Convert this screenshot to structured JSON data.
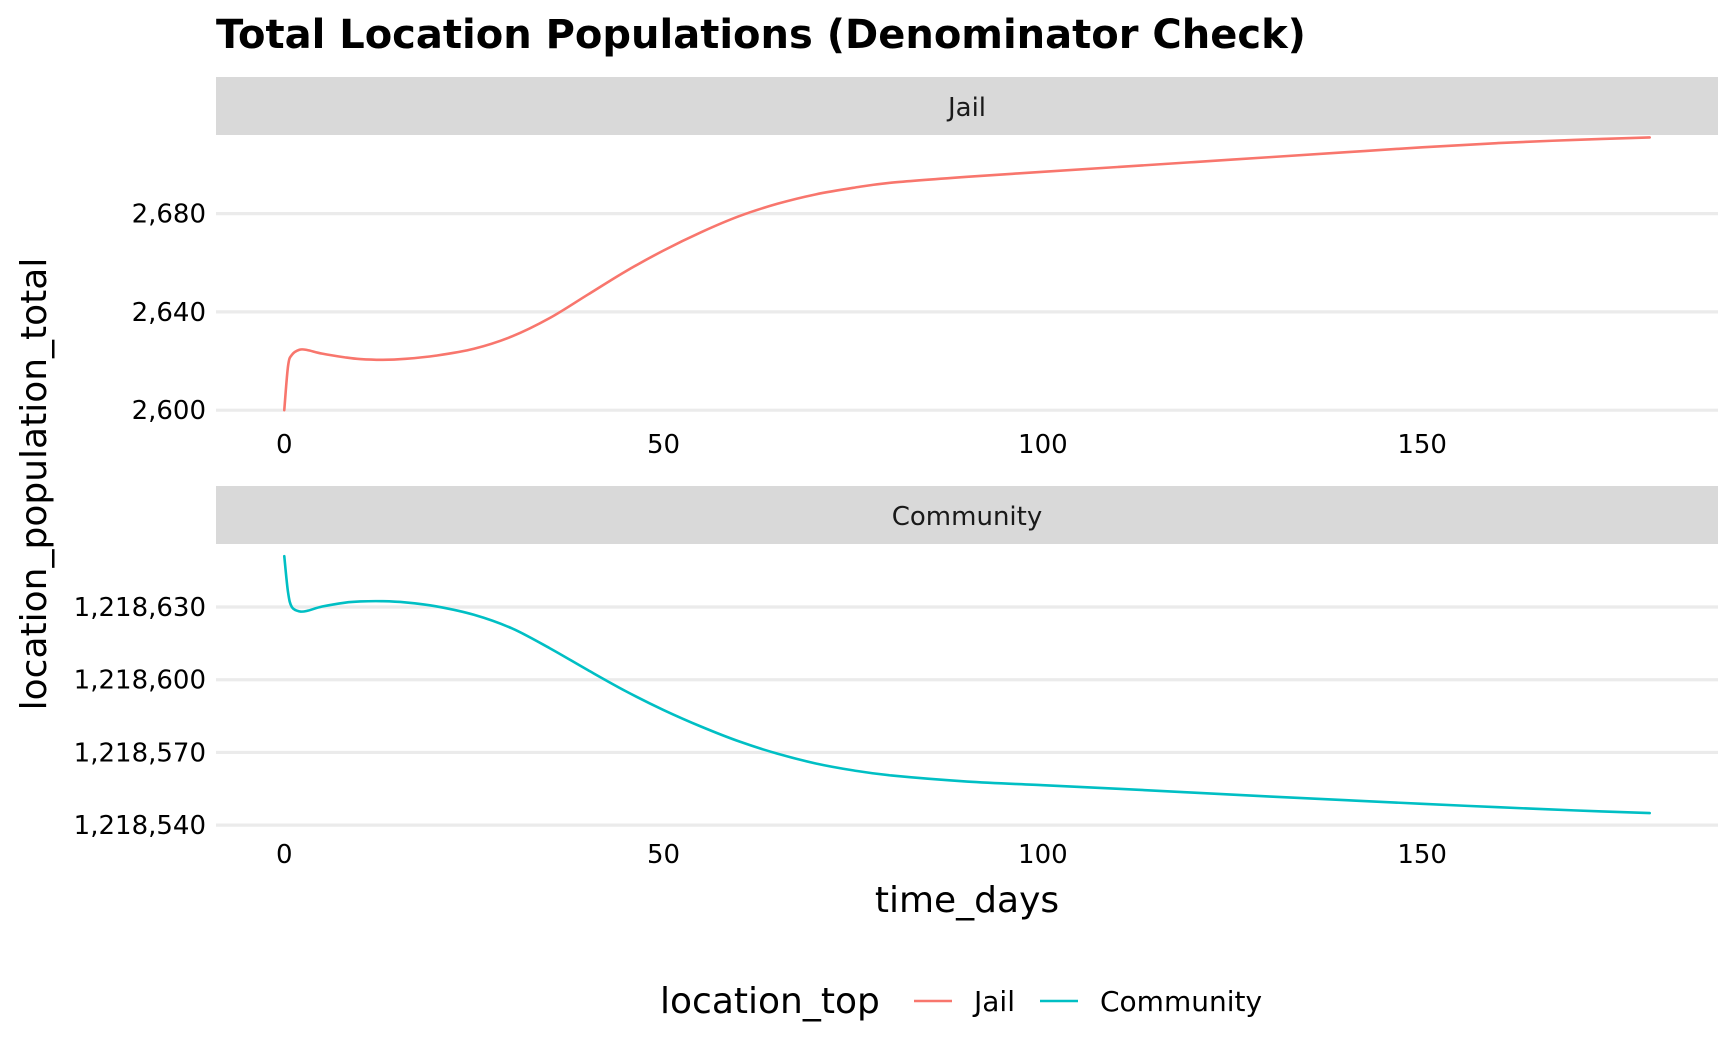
{
  "chart_data": {
    "type": "line",
    "title": "Total Location Populations (Denominator Check)",
    "xlabel": "time_days",
    "ylabel": "location_population_total",
    "legend": {
      "title": "location_top",
      "placement": "bottom",
      "entries": [
        {
          "label": "Jail",
          "color": "#F8766D"
        },
        {
          "label": "Community",
          "color": "#00BFC4"
        }
      ]
    },
    "grid": true,
    "facets": [
      {
        "label": "Jail",
        "color": "#F8766D",
        "xlim": [
          -9,
          189
        ],
        "ylim": [
          2596,
          2712
        ],
        "x_ticks": [
          0,
          50,
          100,
          150
        ],
        "x_tick_labels": [
          "0",
          "50",
          "100",
          "150"
        ],
        "y_ticks": [
          2600,
          2640,
          2680
        ],
        "y_tick_labels": [
          "2,600",
          "2,640",
          "2,680"
        ],
        "points": [
          [
            0,
            2600
          ],
          [
            0.5,
            2618
          ],
          [
            1,
            2622.5
          ],
          [
            2,
            2624.6
          ],
          [
            3,
            2624.5
          ],
          [
            5,
            2623
          ],
          [
            8,
            2621.5
          ],
          [
            10,
            2620.8
          ],
          [
            13,
            2620.5
          ],
          [
            16,
            2620.9
          ],
          [
            20,
            2622.2
          ],
          [
            25,
            2625
          ],
          [
            30,
            2630
          ],
          [
            35,
            2637.5
          ],
          [
            40,
            2647
          ],
          [
            45,
            2656.5
          ],
          [
            50,
            2665
          ],
          [
            55,
            2672.5
          ],
          [
            60,
            2679
          ],
          [
            65,
            2684
          ],
          [
            70,
            2687.8
          ],
          [
            75,
            2690.5
          ],
          [
            80,
            2692.6
          ],
          [
            90,
            2695
          ],
          [
            100,
            2697
          ],
          [
            110,
            2699
          ],
          [
            120,
            2701
          ],
          [
            130,
            2703
          ],
          [
            140,
            2705
          ],
          [
            150,
            2707
          ],
          [
            160,
            2708.7
          ],
          [
            170,
            2710
          ],
          [
            180,
            2711
          ]
        ]
      },
      {
        "label": "Community",
        "color": "#00BFC4",
        "xlim": [
          -9,
          189
        ],
        "ylim": [
          1218538,
          1218656
        ],
        "x_ticks": [
          0,
          50,
          100,
          150
        ],
        "x_tick_labels": [
          "0",
          "50",
          "100",
          "150"
        ],
        "y_ticks": [
          1218540,
          1218570,
          1218600,
          1218630
        ],
        "y_tick_labels": [
          "1,218,540",
          "1,218,570",
          "1,218,600",
          "1,218,630"
        ],
        "points": [
          [
            0,
            1218651
          ],
          [
            0.5,
            1218636
          ],
          [
            1,
            1218630
          ],
          [
            2,
            1218628.2
          ],
          [
            3,
            1218628.4
          ],
          [
            5,
            1218630.2
          ],
          [
            8,
            1218631.8
          ],
          [
            10,
            1218632.3
          ],
          [
            13,
            1218632.4
          ],
          [
            16,
            1218631.9
          ],
          [
            20,
            1218630.3
          ],
          [
            25,
            1218626.8
          ],
          [
            30,
            1218621.2
          ],
          [
            35,
            1218613
          ],
          [
            40,
            1218604
          ],
          [
            45,
            1218595.3
          ],
          [
            50,
            1218587.5
          ],
          [
            55,
            1218580.6
          ],
          [
            60,
            1218574.5
          ],
          [
            65,
            1218569.5
          ],
          [
            70,
            1218565.5
          ],
          [
            75,
            1218562.6
          ],
          [
            80,
            1218560.5
          ],
          [
            90,
            1218558
          ],
          [
            100,
            1218556.5
          ],
          [
            110,
            1218555
          ],
          [
            120,
            1218553.4
          ],
          [
            130,
            1218551.8
          ],
          [
            140,
            1218550.3
          ],
          [
            150,
            1218548.8
          ],
          [
            160,
            1218547.4
          ],
          [
            170,
            1218546.1
          ],
          [
            180,
            1218545
          ]
        ]
      }
    ]
  }
}
